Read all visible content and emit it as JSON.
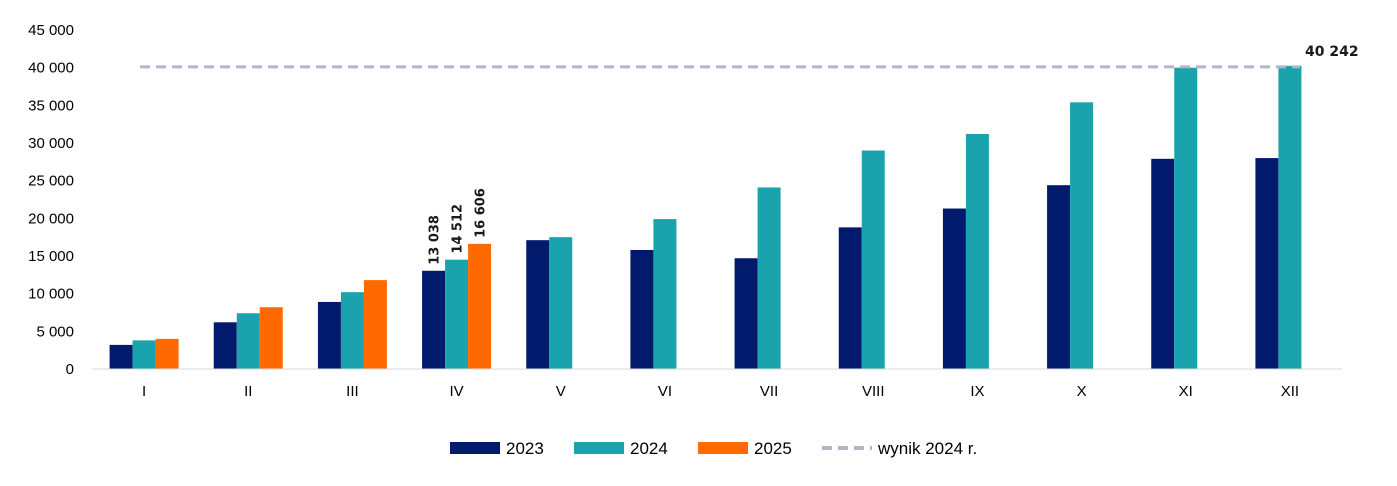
{
  "chart_data": {
    "type": "bar",
    "categories": [
      "I",
      "II",
      "III",
      "IV",
      "V",
      "VI",
      "VII",
      "VIII",
      "IX",
      "X",
      "XI",
      "XII"
    ],
    "series": [
      {
        "name": "2023",
        "color": "#011a6b",
        "values": [
          3200,
          6200,
          8900,
          13038,
          17100,
          15800,
          14700,
          18800,
          21300,
          24400,
          27900,
          28000
        ]
      },
      {
        "name": "2024",
        "color": "#1aa3ad",
        "values": [
          3800,
          7400,
          10200,
          14512,
          17500,
          19900,
          24100,
          29000,
          31200,
          35400,
          40000,
          40242
        ]
      },
      {
        "name": "2025",
        "color": "#ff6a00",
        "values": [
          4000,
          8200,
          11800,
          16606,
          null,
          null,
          null,
          null,
          null,
          null,
          null,
          null
        ]
      }
    ],
    "reference_line": {
      "name": "wynik 2024 r.",
      "value": 40242,
      "color": "#b0b7c9",
      "label": "40 242"
    },
    "data_labels": [
      {
        "category": "IV",
        "series": "2023",
        "text": "13 038"
      },
      {
        "category": "IV",
        "series": "2024",
        "text": "14 512"
      },
      {
        "category": "IV",
        "series": "2025",
        "text": "16 606"
      }
    ],
    "y_ticks": [
      "0",
      "5 000",
      "10 000",
      "15 000",
      "20 000",
      "25 000",
      "30 000",
      "35 000",
      "40 000",
      "45 000"
    ],
    "ylim": [
      0,
      45000
    ],
    "grid": false,
    "legend_position": "bottom"
  }
}
